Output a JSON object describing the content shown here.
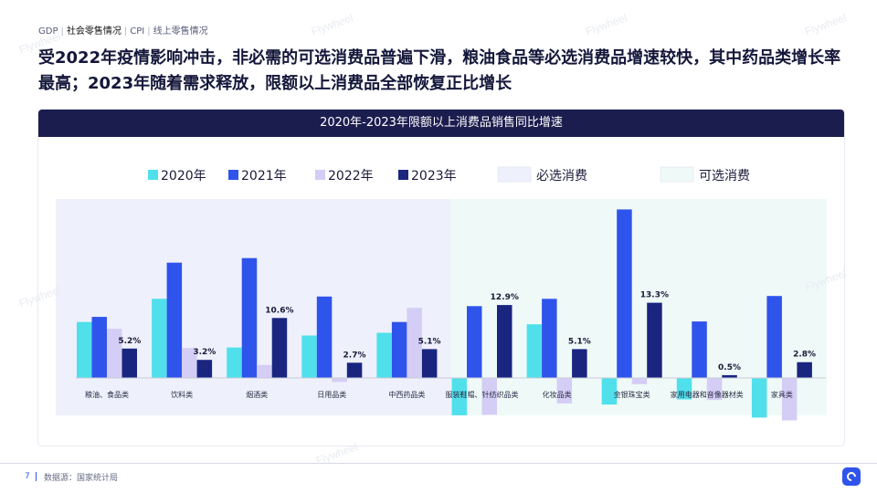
{
  "breadcrumb": {
    "items": [
      "GDP",
      "社会零售情况",
      "CPI",
      "线上零售情况"
    ],
    "current": 1
  },
  "headline": "受2022年疫情影响冲击，非必需的可选消费品普遍下滑，粮油食品等必选消费品增速较快，其中药品类增长率最高；2023年随着需求释放，限额以上消费品全部恢复正比增长",
  "footer": {
    "page": "7",
    "source": "数据源：国家统计局"
  },
  "watermark": "Flywheel",
  "chart_data": {
    "type": "bar",
    "title": "2020年-2023年限额以上消费品销售同比增速",
    "categories": [
      "粮油、食品类",
      "饮料类",
      "烟酒类",
      "日用品类",
      "中西药品类",
      "服装鞋帽、针纺织品类",
      "化妆品类",
      "金银珠宝类",
      "家用电器和音像器材类",
      "家具类"
    ],
    "series": [
      {
        "name": "2020年",
        "color": "#4fe0ec",
        "values": [
          9.9,
          14.0,
          5.4,
          7.5,
          8.0,
          -6.6,
          9.5,
          -4.7,
          -3.8,
          -7.0
        ]
      },
      {
        "name": "2021年",
        "color": "#2f54eb",
        "values": [
          10.8,
          20.4,
          21.2,
          14.4,
          9.9,
          12.7,
          14.0,
          29.8,
          10.0,
          14.5
        ]
      },
      {
        "name": "2022年",
        "color": "#d4cdf5",
        "values": [
          8.7,
          5.3,
          2.3,
          -0.7,
          12.4,
          -6.5,
          -4.5,
          -1.1,
          -3.9,
          -7.5
        ]
      },
      {
        "name": "2023年",
        "color": "#1a2580",
        "values": [
          5.2,
          3.2,
          10.6,
          2.7,
          5.1,
          12.9,
          5.1,
          13.3,
          0.5,
          2.8
        ]
      }
    ],
    "data_labels": [
      "5.2%",
      "3.2%",
      "10.6%",
      "2.7%",
      "5.1%",
      "12.9%",
      "5.1%",
      "13.3%",
      "0.5%",
      "2.8%"
    ],
    "groups": [
      {
        "name": "必选消费",
        "color": "#eef0fb",
        "from": 0,
        "to": 4
      },
      {
        "name": "可选消费",
        "color": "#effaf8",
        "from": 5,
        "to": 9
      }
    ],
    "ylim": [
      -8,
      31
    ],
    "legend_position": "top",
    "grid": false
  }
}
